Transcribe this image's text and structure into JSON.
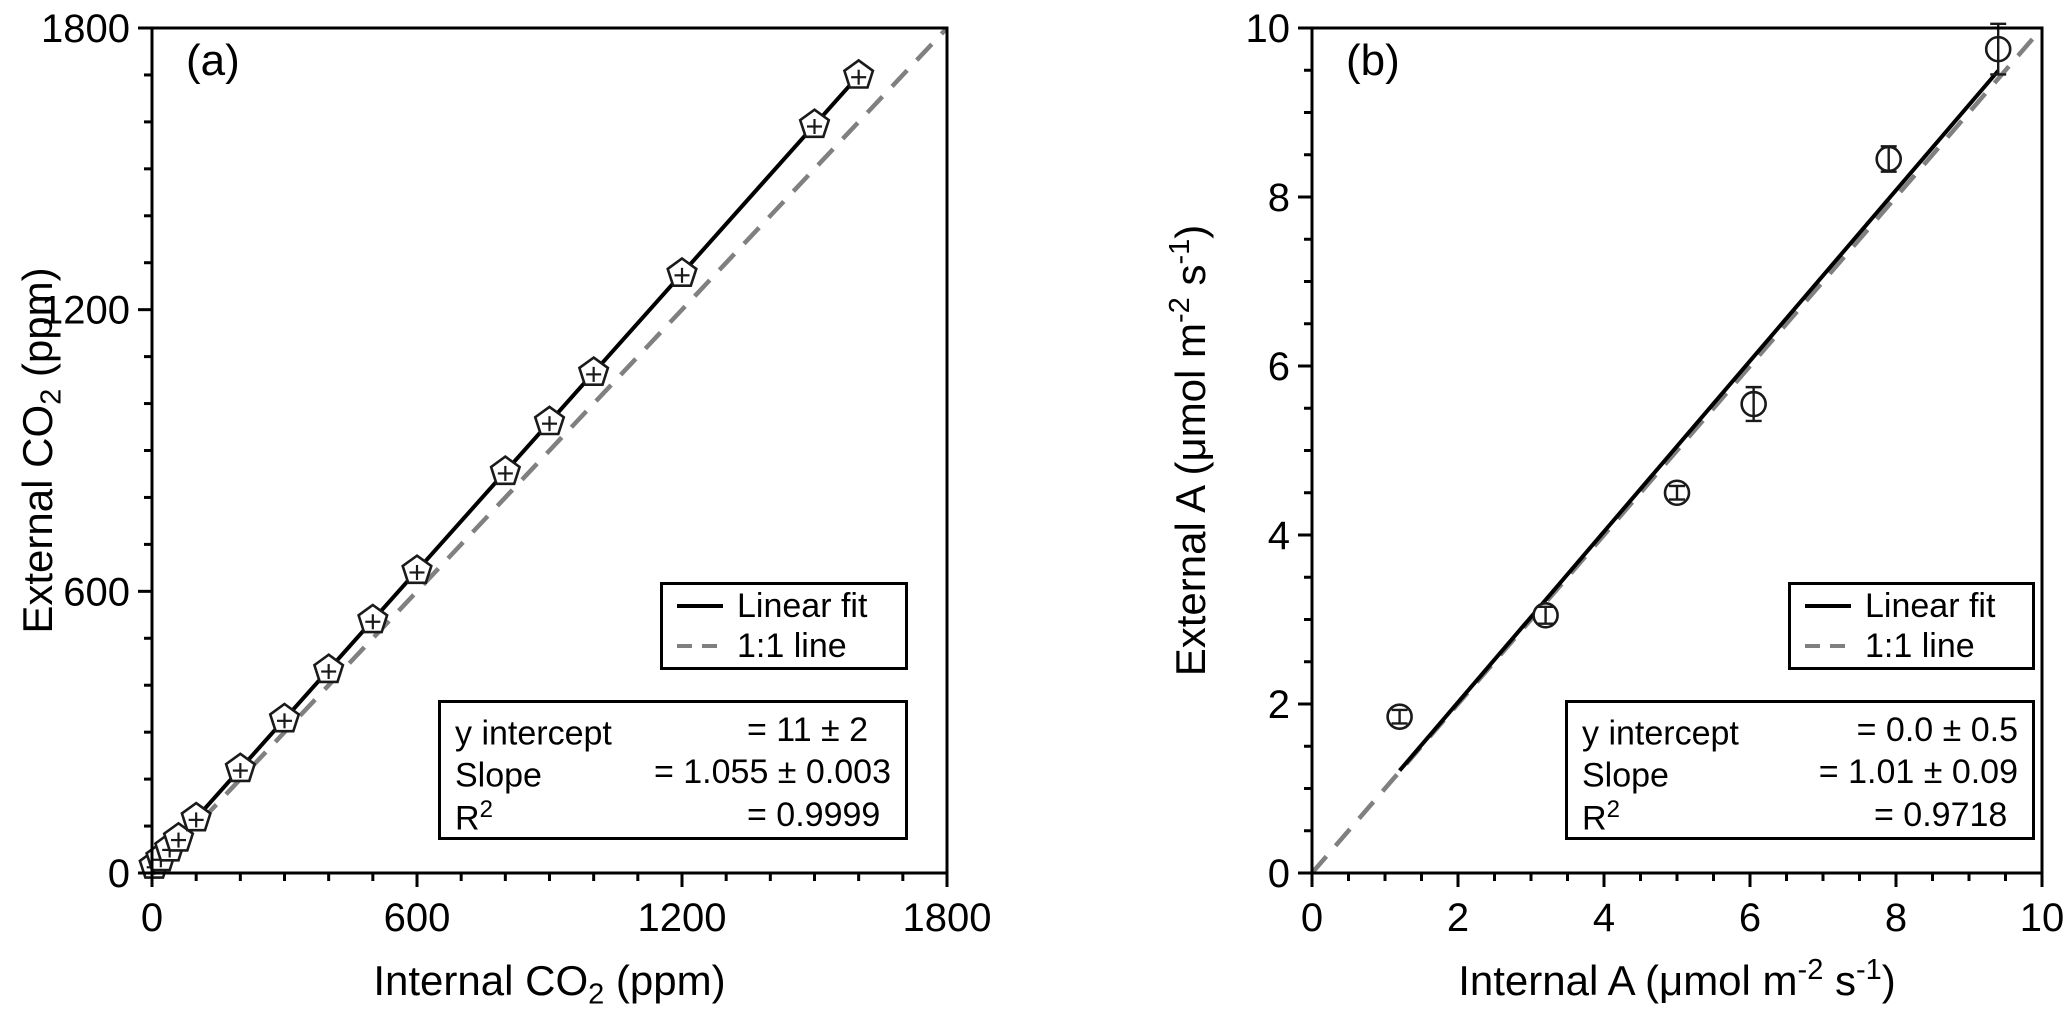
{
  "figure": {
    "background": "#ffffff",
    "colors": {
      "axis": "#000000",
      "text": "#000000",
      "fit_line": "#000000",
      "one_to_one_line": "#808080",
      "marker_stroke": "#1a1a1a",
      "marker_fill": "#ffffff",
      "box_bg": "#ffffff"
    }
  },
  "chart_data": [
    {
      "type": "scatter",
      "panel_label": "(a)",
      "xlabel_parts": [
        {
          "t": "Internal CO"
        },
        {
          "t": "2",
          "sub": true
        },
        {
          "t": " (ppm)"
        }
      ],
      "ylabel_parts": [
        {
          "t": "External CO"
        },
        {
          "t": "2",
          "sub": true
        },
        {
          "t": " (ppm)"
        }
      ],
      "xlim": [
        0,
        1800
      ],
      "ylim": [
        0,
        1800
      ],
      "xticks": [
        0,
        600,
        1200,
        1800
      ],
      "yticks": [
        0,
        600,
        1200,
        1800
      ],
      "minor_step": 100,
      "grid": false,
      "marker": "pentagon-plus",
      "points": [
        {
          "x": 5,
          "y": 16
        },
        {
          "x": 20,
          "y": 32
        },
        {
          "x": 40,
          "y": 53
        },
        {
          "x": 60,
          "y": 74
        },
        {
          "x": 100,
          "y": 117
        },
        {
          "x": 200,
          "y": 222
        },
        {
          "x": 300,
          "y": 328
        },
        {
          "x": 400,
          "y": 433
        },
        {
          "x": 500,
          "y": 539
        },
        {
          "x": 600,
          "y": 644
        },
        {
          "x": 800,
          "y": 855
        },
        {
          "x": 900,
          "y": 961
        },
        {
          "x": 1000,
          "y": 1066
        },
        {
          "x": 1200,
          "y": 1277
        },
        {
          "x": 1500,
          "y": 1594
        },
        {
          "x": 1600,
          "y": 1699
        }
      ],
      "fit": {
        "slope": 1.055,
        "intercept": 11,
        "x_range": [
          0,
          1600
        ]
      },
      "identity_line": true,
      "legend": [
        {
          "label": "Linear fit",
          "style": "solid"
        },
        {
          "label": "1:1 line",
          "style": "dashed"
        }
      ],
      "stats": [
        {
          "name": "y intercept",
          "name_sup": "",
          "value": "= 11 ± 2"
        },
        {
          "name": "Slope",
          "name_sup": "",
          "value": "= 1.055 ± 0.003"
        },
        {
          "name": "R",
          "name_sup": "2",
          "value": "= 0.9999"
        }
      ]
    },
    {
      "type": "scatter",
      "panel_label": "(b)",
      "xlabel_parts": [
        {
          "t": "Internal A (μmol m"
        },
        {
          "t": "-2",
          "sup": true
        },
        {
          "t": " s"
        },
        {
          "t": "-1",
          "sup": true
        },
        {
          "t": ")"
        }
      ],
      "ylabel_parts": [
        {
          "t": "External A (μmol m"
        },
        {
          "t": "-2",
          "sup": true
        },
        {
          "t": " s"
        },
        {
          "t": "-1",
          "sup": true
        },
        {
          "t": ")"
        }
      ],
      "xlim": [
        0,
        10
      ],
      "ylim": [
        0,
        10
      ],
      "xticks": [
        0,
        2,
        4,
        6,
        8,
        10
      ],
      "yticks": [
        0,
        2,
        4,
        6,
        8,
        10
      ],
      "minor_step": 0.5,
      "grid": false,
      "marker": "circle-errorbar",
      "points": [
        {
          "x": 1.2,
          "y": 1.85,
          "err": 0.08
        },
        {
          "x": 3.2,
          "y": 3.05,
          "err": 0.1
        },
        {
          "x": 5.0,
          "y": 4.5,
          "err": 0.08
        },
        {
          "x": 6.05,
          "y": 5.55,
          "err": 0.2
        },
        {
          "x": 7.9,
          "y": 8.45,
          "err": 0.15
        },
        {
          "x": 9.4,
          "y": 9.75,
          "err": 0.3
        }
      ],
      "fit": {
        "slope": 1.01,
        "intercept": 0.0,
        "x_range": [
          1.2,
          9.4
        ]
      },
      "identity_line": true,
      "legend": [
        {
          "label": "Linear fit",
          "style": "solid"
        },
        {
          "label": "1:1 line",
          "style": "dashed"
        }
      ],
      "stats": [
        {
          "name": "y intercept",
          "name_sup": "",
          "value": "= 0.0 ± 0.5"
        },
        {
          "name": "Slope",
          "name_sup": "",
          "value": "= 1.01 ± 0.09"
        },
        {
          "name": "R",
          "name_sup": "2",
          "value": "= 0.9718"
        }
      ]
    }
  ]
}
